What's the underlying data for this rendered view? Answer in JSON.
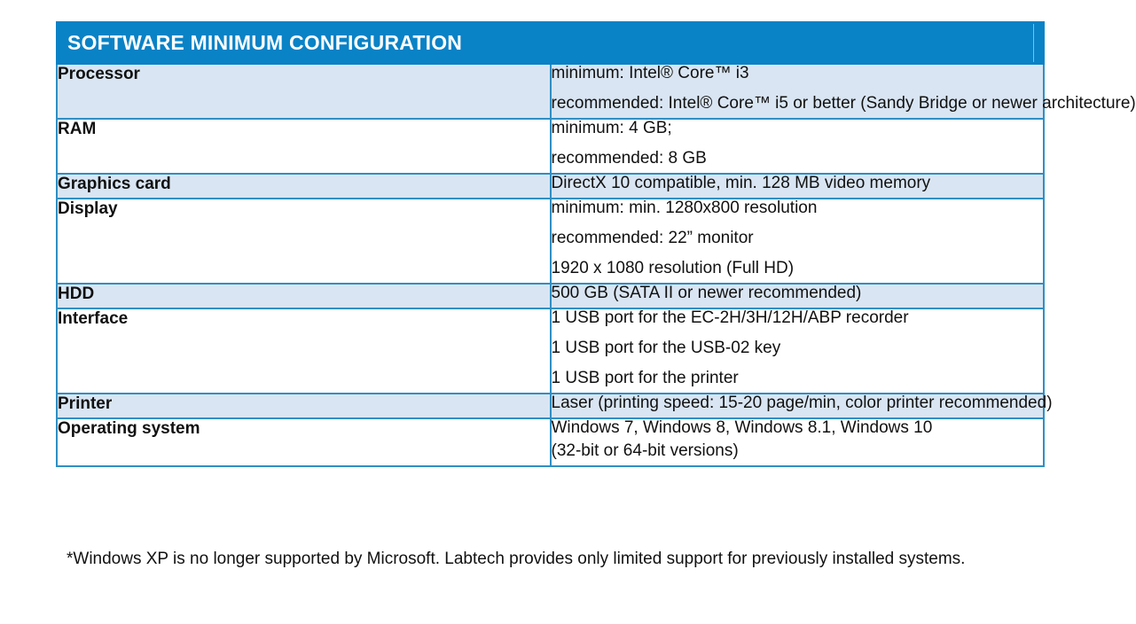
{
  "table": {
    "title": "SOFTWARE MINIMUM CONFIGURATION",
    "rows": [
      {
        "label": "Processor",
        "values": [
          "minimum: Intel® Core™ i3",
          "recommended: Intel® Core™ i5 or better (Sandy Bridge or newer architecture)"
        ]
      },
      {
        "label": "RAM",
        "values": [
          "minimum: 4 GB;",
          "recommended: 8 GB"
        ]
      },
      {
        "label": "Graphics card",
        "values": [
          "DirectX 10 compatible, min. 128 MB video memory"
        ]
      },
      {
        "label": "Display",
        "values": [
          "minimum: min. 1280x800 resolution",
          "recommended:  22” monitor",
          "1920 x 1080 resolution (Full HD)"
        ]
      },
      {
        "label": "HDD",
        "values": [
          "500 GB (SATA II or newer recommended)"
        ]
      },
      {
        "label": "Interface",
        "values": [
          "1 USB port for the EC-2H/3H/12H/ABP recorder",
          "1 USB port for the USB-02 key",
          "1 USB port for the printer"
        ]
      },
      {
        "label": "Printer",
        "values": [
          "Laser (printing speed: 15-20 page/min, color printer recommended)"
        ]
      },
      {
        "label": "Operating system",
        "values": [
          "Windows 7, Windows 8, Windows 8.1, Windows 10",
          "(32-bit or 64-bit versions)"
        ]
      }
    ]
  },
  "footnote": "*Windows XP is no longer supported by Microsoft. Labtech provides only limited support for previously installed systems.",
  "colors": {
    "header_bg": "#0a82c6",
    "border": "#2f8fc4",
    "shaded_row": "#d9e5f2"
  }
}
